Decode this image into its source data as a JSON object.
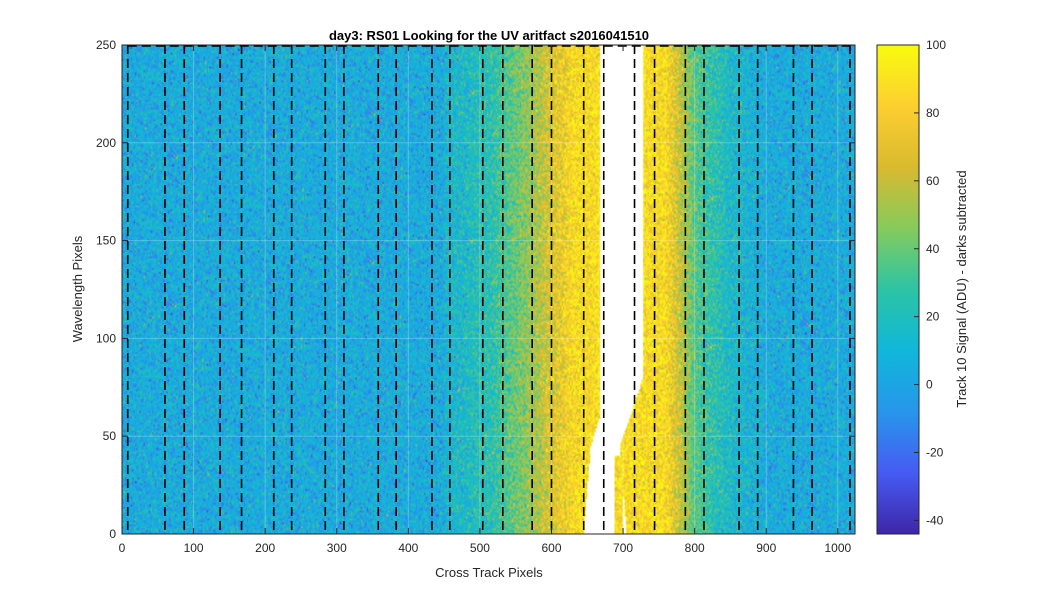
{
  "chart_data": {
    "type": "heatmap",
    "title": "day3: RS01  Looking for the UV aritfact  s2016041510",
    "xlabel": "Cross Track Pixels",
    "ylabel": "Wavelength Pixels",
    "colorbar_label": "Track 10 Signal (ADU) - darks subtracted",
    "xlim": [
      0,
      1024
    ],
    "ylim": [
      0,
      250
    ],
    "clim": [
      -44,
      100
    ],
    "colormap": "parula",
    "x_ticks": [
      0,
      100,
      200,
      300,
      400,
      500,
      600,
      700,
      800,
      900,
      1000
    ],
    "y_ticks": [
      0,
      50,
      100,
      150,
      200,
      250
    ],
    "colorbar_ticks": [
      -40,
      -20,
      0,
      20,
      40,
      60,
      80,
      100
    ],
    "grid": true,
    "background_level": 5,
    "noise_std": 12,
    "saturated_region": {
      "description_value": "white (above color range)",
      "left_edge_x": [
        [
          0,
          645
        ],
        [
          45,
          655
        ],
        [
          60,
          668
        ],
        [
          250,
          668
        ]
      ],
      "right_edge_x": [
        [
          0,
          705
        ],
        [
          45,
          695
        ],
        [
          60,
          710
        ],
        [
          80,
          728
        ],
        [
          250,
          728
        ]
      ],
      "center_notch_x": [
        700,
        710
      ],
      "center_notch_top_y": 40
    },
    "dashed_boundaries_x": [
      8,
      60,
      87,
      137,
      167,
      212,
      237,
      284,
      310,
      358,
      383,
      433,
      458,
      504,
      532,
      573,
      600,
      645,
      673,
      716,
      744,
      787,
      813,
      862,
      888,
      938,
      964,
      1017
    ],
    "signal_gradient": [
      {
        "x": 450,
        "level": 10
      },
      {
        "x": 520,
        "level": 25
      },
      {
        "x": 580,
        "level": 55
      },
      {
        "x": 630,
        "level": 85
      },
      {
        "x": 760,
        "level": 85
      },
      {
        "x": 800,
        "level": 35
      },
      {
        "x": 850,
        "level": 15
      },
      {
        "x": 900,
        "level": 5
      }
    ]
  }
}
